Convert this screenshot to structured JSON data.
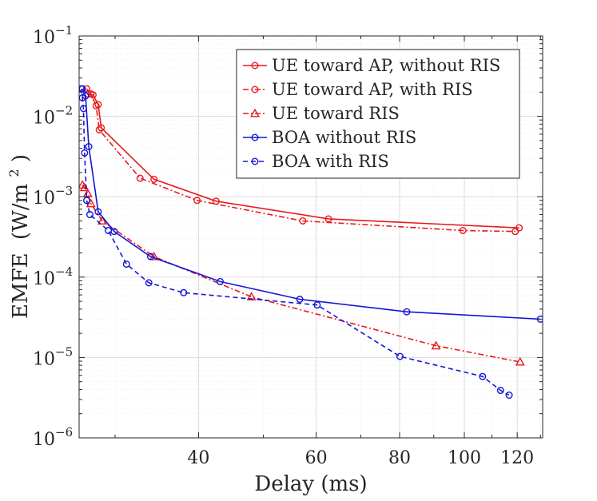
{
  "chart_data": {
    "type": "line",
    "title": "",
    "xlabel": "Delay (ms)",
    "ylabel": "EMFE",
    "ylabel_unit": "(W/m",
    "ylabel_unit_sup": "2",
    "ylabel_unit_close": ")",
    "xscale": "log",
    "yscale": "log",
    "xlim": [
      26.5,
      131
    ],
    "ylim": [
      1e-06,
      0.1
    ],
    "xticks": [
      {
        "value": 40,
        "label": "40"
      },
      {
        "value": 60,
        "label": "60"
      },
      {
        "value": 80,
        "label": "80"
      },
      {
        "value": 100,
        "label": "100"
      },
      {
        "value": 120,
        "label": "120"
      }
    ],
    "yticks": [
      {
        "value": 0.1,
        "base": "10",
        "exp": "−1"
      },
      {
        "value": 0.01,
        "base": "10",
        "exp": "−2"
      },
      {
        "value": 0.001,
        "base": "10",
        "exp": "−3"
      },
      {
        "value": 0.0001,
        "base": "10",
        "exp": "−4"
      },
      {
        "value": 1e-05,
        "base": "10",
        "exp": "−5"
      },
      {
        "value": 1e-06,
        "base": "10",
        "exp": "−6"
      }
    ],
    "grid": true,
    "legend_position": "top-right",
    "series": [
      {
        "name": "UE toward AP, without RIS",
        "color": "#e8191d",
        "dash": "solid",
        "marker": "circle",
        "x": [
          27.3,
          27.8,
          28.3,
          28.6,
          34.3,
          42.5,
          62.6,
          120.8
        ],
        "y": [
          0.019,
          0.0185,
          0.014,
          0.0072,
          0.00165,
          0.00088,
          0.00053,
          0.00041
        ]
      },
      {
        "name": "UE toward AP, with RIS",
        "color": "#e8191d",
        "dash": "dashdot",
        "marker": "circle",
        "x": [
          27.2,
          27.6,
          28.1,
          28.4,
          32.7,
          39.8,
          57.3,
          99.5,
          119.2
        ],
        "y": [
          0.022,
          0.019,
          0.0135,
          0.0068,
          0.0017,
          0.0009,
          0.0005,
          0.00038,
          0.00037
        ]
      },
      {
        "name": "UE toward RIS",
        "color": "#e8191d",
        "dash": "dashdot",
        "marker": "triangle",
        "x": [
          26.8,
          27.0,
          27.3,
          27.6,
          28.7,
          34.3,
          48.0,
          90.7,
          121.2
        ],
        "y": [
          0.0014,
          0.0013,
          0.0011,
          0.00082,
          0.0005,
          0.00018,
          5.7e-05,
          1.4e-05,
          8.8e-06
        ]
      },
      {
        "name": "BOA without RIS",
        "color": "#1416d6",
        "dash": "solid",
        "marker": "circle",
        "x": [
          26.8,
          27.1,
          27.4,
          28.3,
          29.9,
          33.9,
          43.1,
          56.7,
          82.0,
          130.0
        ],
        "y": [
          0.022,
          0.018,
          0.0042,
          0.00065,
          0.00037,
          0.00018,
          8.8e-05,
          5.3e-05,
          3.7e-05,
          3e-05
        ]
      },
      {
        "name": "BOA with RIS",
        "color": "#1416d6",
        "dash": "dash",
        "marker": "circle",
        "x": [
          26.7,
          26.8,
          26.9,
          27.0,
          27.2,
          27.5,
          29.3,
          31.2,
          33.7,
          38.0,
          60.2,
          80.1,
          106.5,
          113.3,
          116.7
        ],
        "y": [
          0.022,
          0.017,
          0.0125,
          0.0035,
          0.0009,
          0.0006,
          0.00038,
          0.000145,
          8.5e-05,
          6.4e-05,
          4.5e-05,
          1.03e-05,
          5.8e-06,
          3.9e-06,
          3.4e-06
        ]
      }
    ]
  }
}
